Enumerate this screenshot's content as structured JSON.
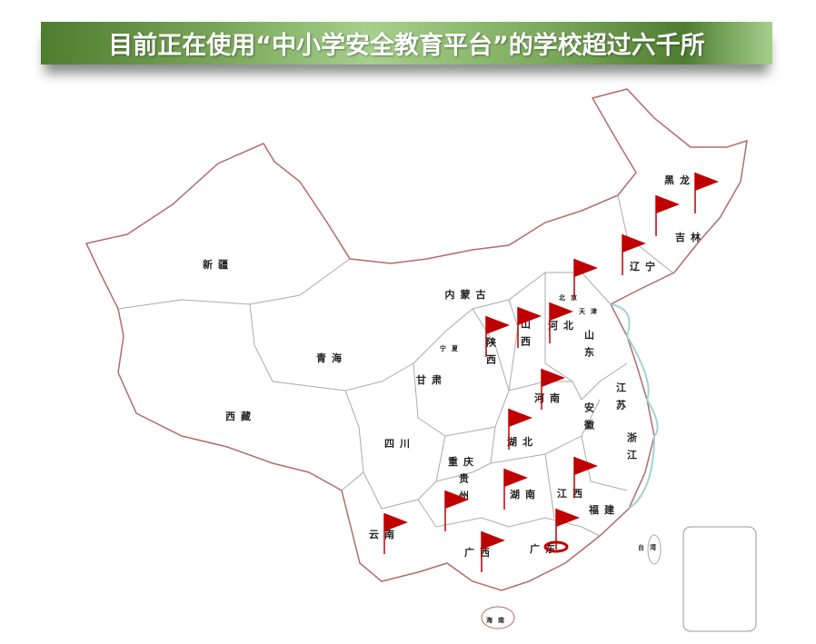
{
  "title": "目前正在使用“中小学安全教育平台”的学校超过六千所",
  "colors": {
    "border": "#b56a6a",
    "province_line": "#aaaaaa",
    "coast": "#9fd3d6",
    "flag": "#c00000",
    "banner": "#6e9e4c"
  },
  "provinces": [
    {
      "id": "xinjiang",
      "name": "新疆"
    },
    {
      "id": "qinghai",
      "name": "青海"
    },
    {
      "id": "xizang",
      "name": "西藏"
    },
    {
      "id": "neimenggu",
      "name": "内蒙古"
    },
    {
      "id": "gansu",
      "name": "甘肃"
    },
    {
      "id": "ningxia",
      "name": "宁夏"
    },
    {
      "id": "shaanxi",
      "name": "陕西"
    },
    {
      "id": "shanxi",
      "name": "山西"
    },
    {
      "id": "hebei",
      "name": "河北"
    },
    {
      "id": "beijing",
      "name": "北京"
    },
    {
      "id": "tianjin",
      "name": "天津"
    },
    {
      "id": "shandong",
      "name": "山东"
    },
    {
      "id": "henan",
      "name": "河南"
    },
    {
      "id": "jiangsu",
      "name": "江苏"
    },
    {
      "id": "anhui",
      "name": "安徽"
    },
    {
      "id": "hubei",
      "name": "湖北"
    },
    {
      "id": "sichuan",
      "name": "四川"
    },
    {
      "id": "chongqing",
      "name": "重庆"
    },
    {
      "id": "zhejiang",
      "name": "浙江"
    },
    {
      "id": "guizhou",
      "name": "贵州"
    },
    {
      "id": "hunan",
      "name": "湖南"
    },
    {
      "id": "jiangxi",
      "name": "江西"
    },
    {
      "id": "fujian",
      "name": "福建"
    },
    {
      "id": "yunnan",
      "name": "云南"
    },
    {
      "id": "guangxi",
      "name": "广西"
    },
    {
      "id": "guangdong",
      "name": "广东"
    },
    {
      "id": "taiwan",
      "name": "台湾"
    },
    {
      "id": "hainan",
      "name": "海南"
    },
    {
      "id": "heilongjiang",
      "name": "黑龙"
    },
    {
      "id": "jilin",
      "name": "吉林"
    },
    {
      "id": "liaoning",
      "name": "辽宁"
    }
  ],
  "flagged_provinces": [
    "heilongjiang",
    "jilin",
    "liaoning",
    "beijing",
    "shaanxi",
    "shanxi",
    "hebei",
    "henan",
    "hubei",
    "hunan",
    "jiangxi",
    "guizhou",
    "yunnan",
    "guangxi",
    "guangdong"
  ],
  "highlighted_province": "guangdong"
}
